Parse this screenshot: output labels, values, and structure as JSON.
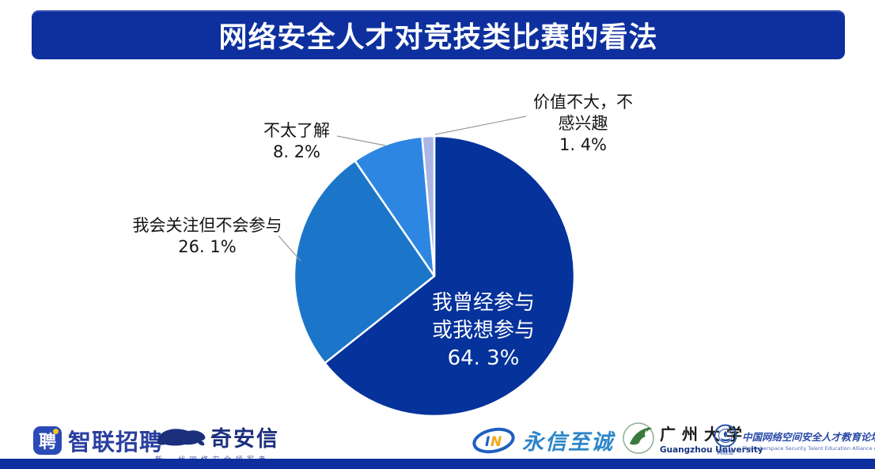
{
  "page": {
    "background": "#ffffff",
    "accent_blue": "#0d309e"
  },
  "header": {
    "title": "网络安全人才对竞技类比赛的看法"
  },
  "chart_data": {
    "type": "pie",
    "title": "网络安全人才对竞技类比赛的看法",
    "categories": [
      "我曾经参与或我想参与",
      "我会关注但不会参与",
      "不太了解",
      "价值不大，不感兴趣"
    ],
    "values": [
      64.3,
      26.1,
      8.2,
      1.4
    ],
    "unit": "%",
    "colors": [
      "#05329b",
      "#1b76c9",
      "#2d87e2",
      "#a9b6e6"
    ],
    "start_angle_deg": 0,
    "direction": "clockwise",
    "slice_border_color": "#ffffff",
    "leader_line_color": "#9a9a9a",
    "legend": "none",
    "label_placement": [
      "inside",
      "outside",
      "outside",
      "outside"
    ]
  },
  "labels": {
    "participated": {
      "line1": "我曾经参与",
      "line2": "或我想参与",
      "value": "64. 3%"
    },
    "watch_only": {
      "line1": "我会关注但不会参与",
      "value": "26. 1%"
    },
    "unfamiliar": {
      "line1": "不太了解",
      "value": "8. 2%"
    },
    "no_value": {
      "line1": "价值不大，不",
      "line2": "感兴趣",
      "value": "1. 4%"
    }
  },
  "footer": {
    "zhaopin": {
      "icon": "zhaopin-pin-badge-icon",
      "badge_char": "聘",
      "text": "智联招聘"
    },
    "qianxin": {
      "icon": "qax-tiger-icon",
      "text": "奇安信",
      "tagline": "新一代网络安全领军者"
    },
    "yongxin": {
      "icon": "in-ellipse-icon",
      "icon_i": "I",
      "icon_n": "N",
      "text": "永信至诚"
    },
    "gzhu": {
      "icon": "dove-icon",
      "text": "广州大学",
      "subtext": "Guangzhou University"
    },
    "alliance": {
      "icon": "alliance-emblem-icon",
      "emblem_caption": "网教盟",
      "text": "中国网络空间安全人才教育论坛",
      "subtext": "The Cyberspace Security Talent Education Alliance of China"
    }
  }
}
